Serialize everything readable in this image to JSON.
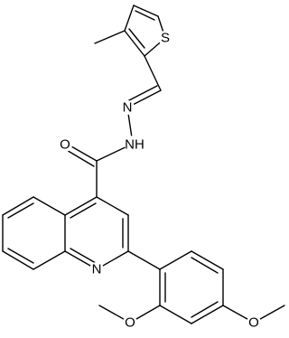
{
  "molecule": {
    "atom_labels": [
      "S",
      "N",
      "NH",
      "O",
      "N",
      "O",
      "O"
    ]
  }
}
